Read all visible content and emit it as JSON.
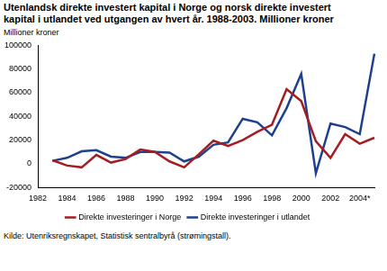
{
  "chart_data": {
    "type": "line",
    "title": [
      "Utenlandsk direkte investert kapital i Norge og norsk direkte investert",
      "kapital i utlandet ved utgangen av hvert år. 1988-2003. Millioner kroner"
    ],
    "y_label": "Millioner kroner",
    "source": "Kilde: Utenriksregnskapet, Statistisk sentralbyrå (strømingstall).",
    "categories": [
      "1982",
      null,
      "1984",
      null,
      "1986",
      null,
      "1988",
      null,
      "1990",
      null,
      "1992",
      null,
      "1994",
      null,
      "1996",
      null,
      "1998",
      null,
      "2000",
      null,
      "2002",
      null,
      "2004*",
      null
    ],
    "series": [
      {
        "name": "Direkte investeringer i Norge",
        "color": "#a31d22",
        "values": [
          null,
          3000,
          -1500,
          -3000,
          7500,
          1000,
          4000,
          12000,
          10000,
          2000,
          -3000,
          8000,
          19500,
          15000,
          20000,
          27000,
          33000,
          63000,
          53000,
          19000,
          5000,
          25000,
          17000,
          22000
        ]
      },
      {
        "name": "Direkte investeringer i utlandet",
        "color": "#1f3f8f",
        "values": [
          null,
          2500,
          5000,
          10500,
          11500,
          6000,
          5000,
          10000,
          10000,
          9500,
          2000,
          6000,
          16000,
          18000,
          38000,
          35000,
          24000,
          47000,
          76000,
          -8000,
          34000,
          31000,
          25000,
          93000
        ]
      }
    ],
    "ylim": [
      -20000,
      100000
    ],
    "yticks": [
      -20000,
      0,
      20000,
      40000,
      60000,
      80000,
      100000
    ],
    "grid": false,
    "legend": "bottom"
  }
}
